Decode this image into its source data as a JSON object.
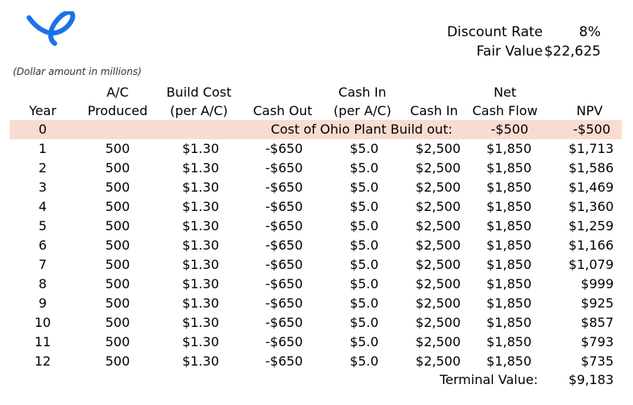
{
  "logo": {
    "icon": "airline-swoosh-logo-icon",
    "color": "#1a73e8"
  },
  "summary": {
    "discount_rate_label": "Discount Rate",
    "discount_rate_value": "8%",
    "fair_value_label": "Fair Value",
    "fair_value_value": "$22,625"
  },
  "note": "(Dollar amount in millions)",
  "headers": {
    "year": "Year",
    "produced": "A/C\nProduced",
    "build_cost": "Build Cost\n(per A/C)",
    "cash_out": "Cash Out",
    "cash_in_per": "Cash In\n(per A/C)",
    "cash_in": "Cash In",
    "net_cash_flow": "Net\nCash Flow",
    "npv": "NPV"
  },
  "first_row": {
    "year": "0",
    "label": "Cost of Ohio Plant Build out:",
    "net_cash_flow": "-$500",
    "npv": "-$500",
    "highlight": "#f9dcd1"
  },
  "rows": [
    {
      "year": "1",
      "produced": "500",
      "build_cost": "$1.30",
      "cash_out": "-$650",
      "cash_in_per": "$5.0",
      "cash_in": "$2,500",
      "net": "$1,850",
      "npv": "$1,713"
    },
    {
      "year": "2",
      "produced": "500",
      "build_cost": "$1.30",
      "cash_out": "-$650",
      "cash_in_per": "$5.0",
      "cash_in": "$2,500",
      "net": "$1,850",
      "npv": "$1,586"
    },
    {
      "year": "3",
      "produced": "500",
      "build_cost": "$1.30",
      "cash_out": "-$650",
      "cash_in_per": "$5.0",
      "cash_in": "$2,500",
      "net": "$1,850",
      "npv": "$1,469"
    },
    {
      "year": "4",
      "produced": "500",
      "build_cost": "$1.30",
      "cash_out": "-$650",
      "cash_in_per": "$5.0",
      "cash_in": "$2,500",
      "net": "$1,850",
      "npv": "$1,360"
    },
    {
      "year": "5",
      "produced": "500",
      "build_cost": "$1.30",
      "cash_out": "-$650",
      "cash_in_per": "$5.0",
      "cash_in": "$2,500",
      "net": "$1,850",
      "npv": "$1,259"
    },
    {
      "year": "6",
      "produced": "500",
      "build_cost": "$1.30",
      "cash_out": "-$650",
      "cash_in_per": "$5.0",
      "cash_in": "$2,500",
      "net": "$1,850",
      "npv": "$1,166"
    },
    {
      "year": "7",
      "produced": "500",
      "build_cost": "$1.30",
      "cash_out": "-$650",
      "cash_in_per": "$5.0",
      "cash_in": "$2,500",
      "net": "$1,850",
      "npv": "$1,079"
    },
    {
      "year": "8",
      "produced": "500",
      "build_cost": "$1.30",
      "cash_out": "-$650",
      "cash_in_per": "$5.0",
      "cash_in": "$2,500",
      "net": "$1,850",
      "npv": "$999"
    },
    {
      "year": "9",
      "produced": "500",
      "build_cost": "$1.30",
      "cash_out": "-$650",
      "cash_in_per": "$5.0",
      "cash_in": "$2,500",
      "net": "$1,850",
      "npv": "$925"
    },
    {
      "year": "10",
      "produced": "500",
      "build_cost": "$1.30",
      "cash_out": "-$650",
      "cash_in_per": "$5.0",
      "cash_in": "$2,500",
      "net": "$1,850",
      "npv": "$857"
    },
    {
      "year": "11",
      "produced": "500",
      "build_cost": "$1.30",
      "cash_out": "-$650",
      "cash_in_per": "$5.0",
      "cash_in": "$2,500",
      "net": "$1,850",
      "npv": "$793"
    },
    {
      "year": "12",
      "produced": "500",
      "build_cost": "$1.30",
      "cash_out": "-$650",
      "cash_in_per": "$5.0",
      "cash_in": "$2,500",
      "net": "$1,850",
      "npv": "$735"
    }
  ],
  "terminal": {
    "label": "Terminal Value:",
    "value": "$9,183"
  }
}
